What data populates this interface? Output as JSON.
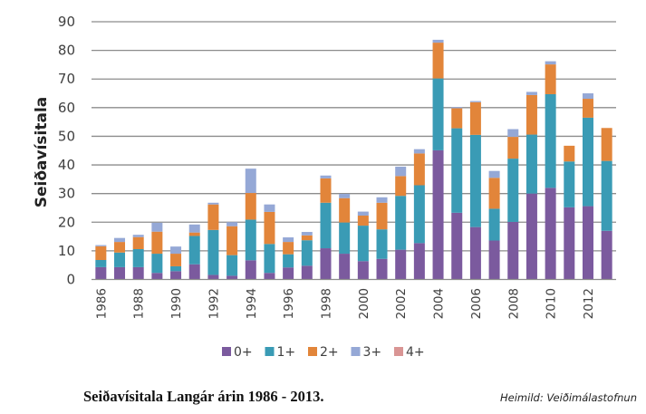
{
  "chart_data": {
    "type": "bar",
    "stacked": true,
    "title": "",
    "xlabel": "",
    "ylabel": "Seiðavísitala",
    "ylim": [
      0,
      90
    ],
    "yticks": [
      0,
      10,
      20,
      30,
      40,
      50,
      60,
      70,
      80,
      90
    ],
    "grid": true,
    "legend_position": "bottom",
    "categories": [
      "1986",
      "1987",
      "1988",
      "1989",
      "1990",
      "1991",
      "1992",
      "1993",
      "1994",
      "1995",
      "1996",
      "1997",
      "1998",
      "1999",
      "2000",
      "2001",
      "2002",
      "2003",
      "2004",
      "2005",
      "2006",
      "2007",
      "2008",
      "2009",
      "2010",
      "2011",
      "2012",
      "2013"
    ],
    "xtick_labels": [
      "1986",
      "1988",
      "1990",
      "1992",
      "1994",
      "1996",
      "1998",
      "2000",
      "2002",
      "2004",
      "2006",
      "2008",
      "2010",
      "2012"
    ],
    "series": [
      {
        "name": "0+",
        "color": "#7B5A9E",
        "values": [
          4.3,
          4.3,
          4.3,
          2.3,
          2.9,
          5.3,
          1.6,
          1.3,
          6.7,
          2.3,
          4.2,
          4.8,
          10.9,
          9.0,
          6.4,
          7.2,
          10.4,
          12.7,
          45.1,
          23.3,
          18.3,
          13.6,
          20.1,
          30.0,
          32.0,
          25.2,
          25.6,
          17.0
        ]
      },
      {
        "name": "1+",
        "color": "#3A9BB5",
        "values": [
          2.5,
          5.1,
          6.3,
          6.7,
          1.7,
          9.9,
          15.7,
          7.2,
          14.2,
          10.1,
          4.6,
          8.9,
          15.9,
          10.9,
          12.4,
          10.3,
          18.8,
          20.2,
          25.1,
          29.5,
          32.2,
          11.1,
          22.1,
          20.6,
          32.7,
          16.0,
          30.9,
          24.4
        ]
      },
      {
        "name": "2+",
        "color": "#E2853A",
        "values": [
          4.8,
          3.7,
          4.2,
          7.7,
          4.4,
          1.2,
          8.9,
          10.1,
          9.3,
          11.2,
          4.3,
          1.7,
          8.5,
          8.5,
          3.5,
          9.3,
          6.9,
          11.1,
          12.5,
          7.0,
          11.4,
          10.8,
          7.6,
          13.8,
          10.4,
          5.5,
          6.6,
          11.5
        ]
      },
      {
        "name": "3+",
        "color": "#95A8D6",
        "values": [
          0.4,
          1.4,
          0.8,
          3.1,
          2.5,
          2.8,
          0.6,
          1.4,
          8.5,
          2.6,
          1.6,
          1.2,
          1.0,
          1.5,
          1.4,
          1.9,
          3.3,
          1.5,
          1.0,
          0.4,
          0.4,
          2.4,
          2.7,
          1.1,
          1.1,
          0,
          1.9,
          0
        ]
      },
      {
        "name": "4+",
        "color": "#D99594",
        "values": [
          0,
          0,
          0,
          0,
          0,
          0,
          0,
          0,
          0,
          0,
          0,
          0,
          0,
          0,
          0,
          0,
          0,
          0,
          0,
          0,
          0,
          0,
          0,
          0,
          0,
          0,
          0,
          0
        ]
      }
    ]
  },
  "caption": "Seiðavísitala Langár árin 1986 - 2013.",
  "source": "Heimild: Veiðimálastofnun"
}
